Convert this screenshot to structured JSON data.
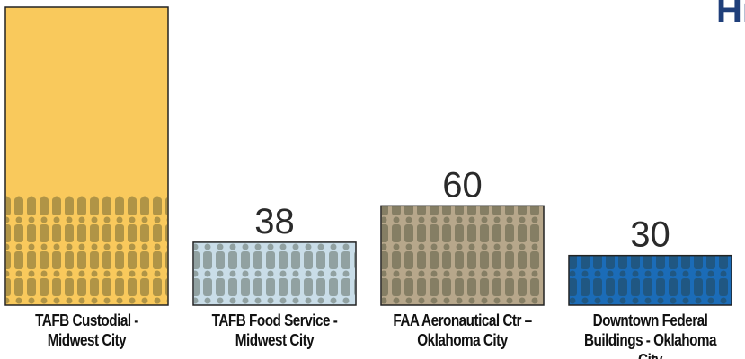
{
  "chart_data": {
    "type": "bar",
    "title": "Hi",
    "categories": [
      "TAFB Custodial -\nMidwest City",
      "TAFB Food Service -\nMidwest City",
      "FAA Aeronautical Ctr –\nOklahoma City",
      "Downtown Federal\nBuildings - Oklahoma City"
    ],
    "values": [
      180,
      38,
      60,
      30
    ],
    "colors": [
      "#f9c95c",
      "#c9dde8",
      "#b7a78b",
      "#1b6cb8"
    ],
    "ylim": [
      0,
      180
    ]
  }
}
